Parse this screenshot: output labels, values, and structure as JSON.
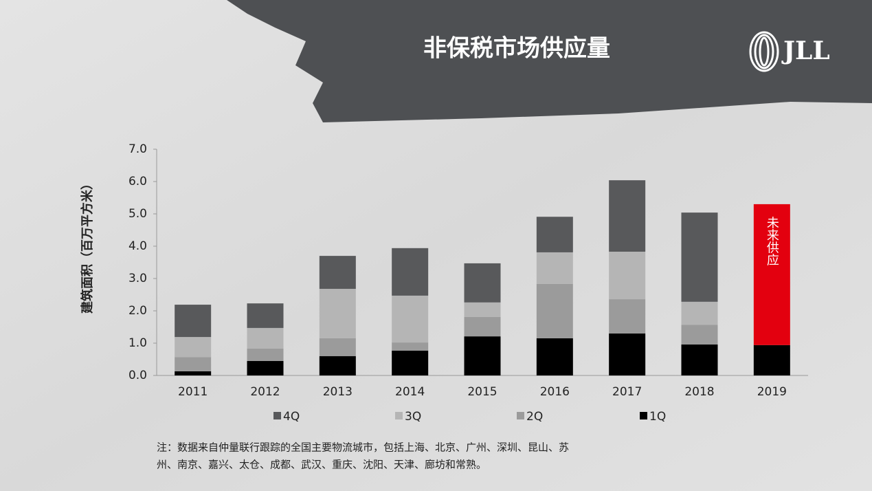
{
  "header": {
    "title": "非保税市场供应量",
    "logo": "JLL"
  },
  "chart_data": {
    "type": "stacked_bar",
    "y_label": "建筑面积（百万平方米）",
    "categories": [
      "2011",
      "2012",
      "2013",
      "2014",
      "2015",
      "2016",
      "2017",
      "2018",
      "2019"
    ],
    "series": [
      {
        "name": "1Q",
        "color": "#000000",
        "values": [
          0.13,
          0.45,
          0.6,
          0.77,
          1.21,
          1.15,
          1.3,
          0.96,
          0.94
        ]
      },
      {
        "name": "2Q",
        "color": "#9b9b9b",
        "values": [
          0.44,
          0.38,
          0.55,
          0.25,
          0.6,
          1.68,
          1.06,
          0.61,
          null
        ]
      },
      {
        "name": "3Q",
        "color": "#b5b5b5",
        "values": [
          0.62,
          0.64,
          1.53,
          1.45,
          0.45,
          0.98,
          1.47,
          0.71,
          null
        ]
      },
      {
        "name": "4Q",
        "color": "#58595b",
        "values": [
          1.0,
          0.76,
          1.02,
          1.47,
          1.21,
          1.1,
          2.21,
          2.76,
          null
        ]
      },
      {
        "name": "未来供应",
        "color": "#e3000f",
        "legend": false,
        "values": [
          null,
          null,
          null,
          null,
          null,
          null,
          null,
          null,
          4.36
        ]
      }
    ],
    "legend_order": [
      3,
      2,
      1,
      0
    ],
    "ylim": [
      0,
      7
    ],
    "yticks": [
      {
        "value": 0,
        "label": "0.0"
      },
      {
        "value": 1,
        "label": "1.0"
      },
      {
        "value": 2,
        "label": "2.0"
      },
      {
        "value": 3,
        "label": "3.0"
      },
      {
        "value": 4,
        "label": "4.0"
      },
      {
        "value": 5,
        "label": "5.0"
      },
      {
        "value": 6,
        "label": "6.0"
      },
      {
        "value": 7,
        "label": "7.0"
      }
    ],
    "grid": false
  },
  "note": [
    "注：数据来自仲量联行跟踪的全国主要物流城市，包括上海、北京、广州、深圳、昆山、苏",
    "州、南京、嘉兴、太仓、成都、武汉、重庆、沈阳、天津、廊坊和常熟。"
  ]
}
